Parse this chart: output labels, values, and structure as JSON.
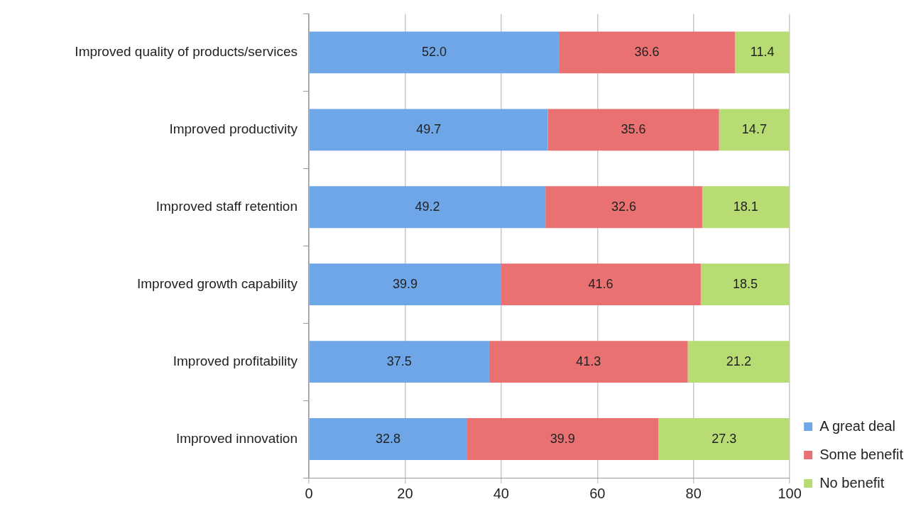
{
  "chart_data": {
    "type": "bar",
    "orientation": "horizontal",
    "stacked": true,
    "categories": [
      "Improved quality of products/services",
      "Improved productivity",
      "Improved staff retention",
      "Improved growth capability",
      "Improved profitability",
      "Improved innovation"
    ],
    "series": [
      {
        "name": "A great deal",
        "color": "#6ea6e8",
        "values": [
          52.0,
          49.7,
          49.2,
          39.9,
          37.5,
          32.8
        ],
        "value_labels": [
          "52.0",
          "49.7",
          "49.2",
          "39.9",
          "37.5",
          "32.8"
        ]
      },
      {
        "name": "Some benefit",
        "color": "#e97171",
        "values": [
          36.6,
          35.6,
          32.6,
          41.6,
          41.3,
          39.9
        ],
        "value_labels": [
          "36.6",
          "35.6",
          "32.6",
          "41.6",
          "41.3",
          "39.9"
        ]
      },
      {
        "name": "No benefit",
        "color": "#b8dc74",
        "values": [
          11.4,
          14.7,
          18.1,
          18.5,
          21.2,
          27.3
        ],
        "value_labels": [
          "11.4",
          "14.7",
          "18.1",
          "18.5",
          "21.2",
          "27.3"
        ]
      }
    ],
    "xlim": [
      0,
      100
    ],
    "xticks": [
      0,
      20,
      40,
      60,
      80,
      100
    ],
    "grid": "x",
    "legend": "bottom right"
  }
}
